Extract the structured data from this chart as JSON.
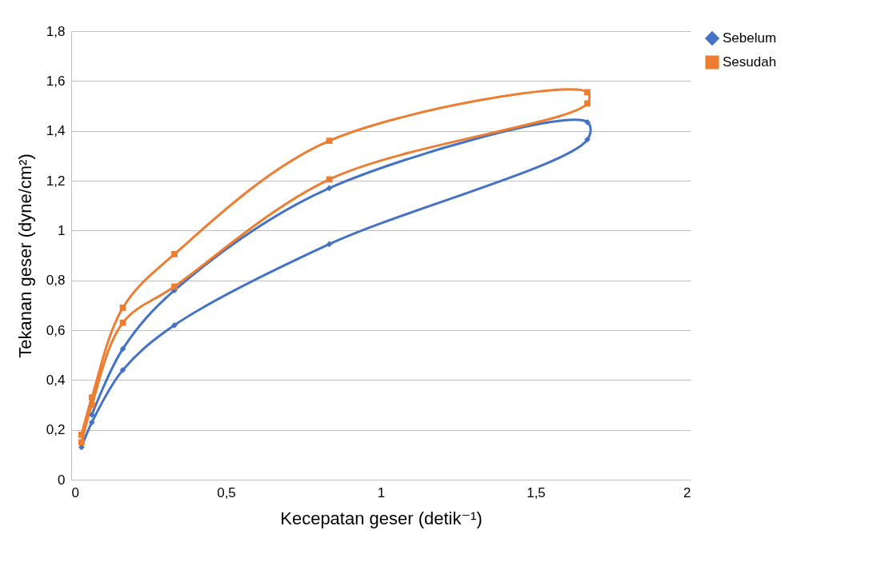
{
  "chart_data": {
    "type": "line",
    "xlabel": "Kecepatan geser (detik⁻¹)",
    "ylabel": "Tekanan geser (dyne/cm²)",
    "series": [
      {
        "name": "Sebelum",
        "color": "#4472c4",
        "marker": "diamond",
        "x": [
          0.0333,
          0.0667,
          0.1667,
          0.3333,
          0.8333,
          1.6667,
          1.6667,
          0.8333,
          0.3333,
          0.1667,
          0.0667
        ],
        "values": [
          0.13,
          0.23,
          0.44,
          0.62,
          0.945,
          1.365,
          1.435,
          1.17,
          0.76,
          0.525,
          0.26
        ]
      },
      {
        "name": "Sesudah",
        "color": "#ed7d31",
        "marker": "square",
        "x": [
          0.0333,
          0.0667,
          0.1667,
          0.3333,
          0.8333,
          1.6667,
          1.6667,
          0.8333,
          0.3333,
          0.1667,
          0.0667,
          0.0333
        ],
        "values": [
          0.15,
          0.3,
          0.63,
          0.775,
          1.205,
          1.51,
          1.555,
          1.36,
          0.905,
          0.69,
          0.33,
          0.18
        ]
      }
    ],
    "xlim": [
      0,
      2
    ],
    "xticks": [
      0,
      {
        "value": 0.5,
        "label": "0,5"
      },
      1,
      {
        "value": 1.5,
        "label": "1,5"
      },
      2
    ],
    "ylim": [
      0,
      1.8
    ],
    "yticks": [
      0,
      {
        "value": 0.2,
        "label": "0,2"
      },
      {
        "value": 0.4,
        "label": "0,4"
      },
      {
        "value": 0.6,
        "label": "0,6"
      },
      {
        "value": 0.8,
        "label": "0,8"
      },
      1,
      {
        "value": 1.2,
        "label": "1,2"
      },
      {
        "value": 1.4,
        "label": "1,4"
      },
      {
        "value": 1.6,
        "label": "1,6"
      },
      {
        "value": 1.8,
        "label": "1,8"
      }
    ],
    "grid": "y",
    "legend": "right",
    "line_style": "solid"
  }
}
